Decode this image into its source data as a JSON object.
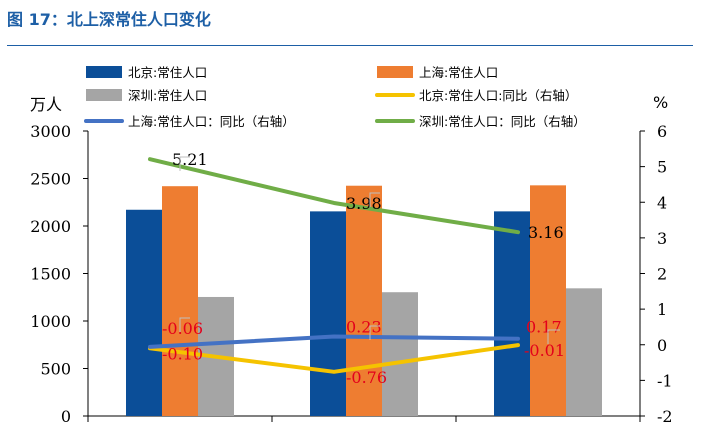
{
  "figure": {
    "title": "图 17：北上深常住人口变化"
  },
  "chart_data": {
    "type": "bar",
    "categories": [
      "",
      "",
      ""
    ],
    "left_axis": {
      "unit": "万人",
      "range": [
        0,
        3000
      ],
      "ticks": [
        "0",
        "500",
        "1000",
        "1500",
        "2000",
        "2500",
        "3000"
      ]
    },
    "right_axis": {
      "unit": "%",
      "range": [
        -2,
        6
      ],
      "ticks": [
        "-2",
        "-1",
        "0",
        "1",
        "2",
        "3",
        "4",
        "5",
        "6"
      ]
    },
    "bar_series": [
      {
        "name": "北京:常住人口",
        "color": "#0b4e98",
        "values": [
          2171,
          2154,
          2154
        ]
      },
      {
        "name": "上海:常住人口",
        "color": "#ee7d31",
        "values": [
          2419,
          2424,
          2428
        ]
      },
      {
        "name": "深圳:常住人口",
        "color": "#a5a5a5",
        "values": [
          1253,
          1303,
          1344
        ]
      }
    ],
    "line_series": [
      {
        "name": "北京:常住人口:同比（右轴）",
        "color": "#f5c300",
        "values": [
          -0.1,
          -0.76,
          -0.01
        ],
        "labels": [
          "-0.10",
          "-0.76",
          "-0.01"
        ],
        "label_color": "#e3001b"
      },
      {
        "name": "上海:常住人口：同比（右轴）",
        "color": "#4472c4",
        "values": [
          -0.06,
          0.23,
          0.17
        ],
        "labels": [
          "-0.06",
          "0.23",
          "0.17"
        ],
        "label_color": "#e3001b"
      },
      {
        "name": "深圳:常住人口：同比（右轴）",
        "color": "#70ad47",
        "values": [
          5.21,
          3.98,
          3.16
        ],
        "labels": [
          "5.21",
          "3.98",
          "3.16"
        ],
        "label_color": "#000000"
      }
    ],
    "legend_position": "top",
    "grid": false
  }
}
